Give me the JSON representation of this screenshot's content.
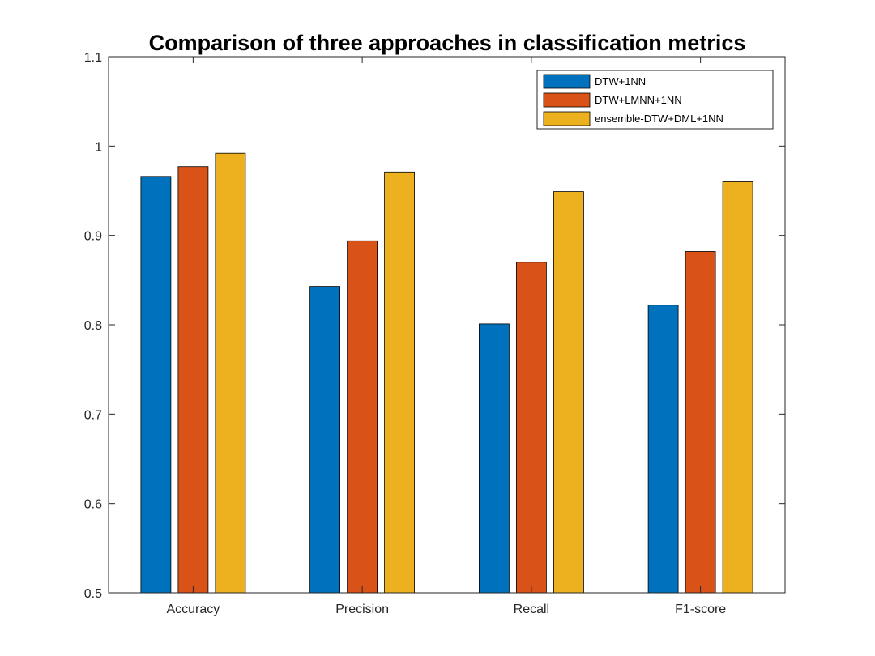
{
  "chart_data": {
    "type": "bar",
    "title": "Comparison of three approaches in classification metrics",
    "xlabel": "",
    "ylabel": "",
    "categories": [
      "Accuracy",
      "Precision",
      "Recall",
      "F1-score"
    ],
    "series": [
      {
        "name": "DTW+1NN",
        "color": "#0072BD",
        "values": [
          0.966,
          0.843,
          0.801,
          0.822
        ]
      },
      {
        "name": "DTW+LMNN+1NN",
        "color": "#D95319",
        "values": [
          0.977,
          0.894,
          0.87,
          0.882
        ]
      },
      {
        "name": "ensemble-DTW+DML+1NN",
        "color": "#EDB120",
        "values": [
          0.992,
          0.971,
          0.949,
          0.96
        ]
      }
    ],
    "ylim": [
      0.5,
      1.1
    ],
    "yticks": [
      "0.5",
      "0.6",
      "0.7",
      "0.8",
      "0.9",
      "1",
      "1.1"
    ],
    "grid": false,
    "legend_position": "top-right"
  }
}
